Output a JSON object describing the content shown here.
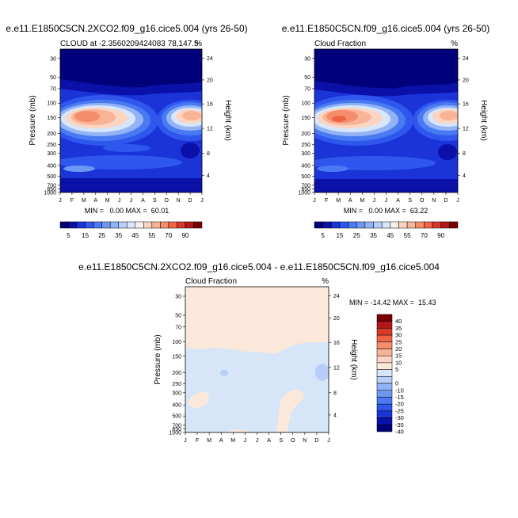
{
  "chart_data": [
    {
      "type": "heatmap",
      "panel": "left",
      "title": "e.e11.E1850C5CN.2XCO2.f09_g16.cice5.004 (yrs 26-50)",
      "subtitle": "CLOUD at -2.3560209424083 78,147.5",
      "subtitle_text": "CLOUD at -2.3560209424083 78,147.5",
      "units": "%",
      "ylabel": "Pressure (mb)",
      "ylabel_right": "Height (km)",
      "x_ticks": [
        "J",
        "F",
        "M",
        "A",
        "M",
        "J",
        "J",
        "A",
        "S",
        "O",
        "N",
        "D",
        "J"
      ],
      "y_ticks": [
        "30",
        "50",
        "70",
        "100",
        "150",
        "200",
        "250",
        "300",
        "400",
        "500",
        "700",
        "850",
        "1000"
      ],
      "y_ticks_right": [
        "24",
        "20",
        "16",
        "12",
        "8",
        "4"
      ],
      "min_max_label": "MIN =   0.00 MAX =  60.01",
      "colorbar_labels": [
        "5",
        "15",
        "25",
        "35",
        "45",
        "55",
        "70",
        "90"
      ],
      "levels": [
        0,
        5,
        10,
        15,
        20,
        25,
        30,
        35,
        40,
        45,
        50,
        55,
        60,
        70,
        80,
        90,
        100
      ]
    },
    {
      "type": "heatmap",
      "panel": "right",
      "title": "e.e11.E1850C5CN.f09_g16.cice5.004 (yrs 26-50)",
      "subtitle_text": "Cloud Fraction",
      "units": "%",
      "ylabel": "Pressure (mb)",
      "ylabel_right": "Height (km)",
      "x_ticks": [
        "J",
        "F",
        "M",
        "A",
        "M",
        "J",
        "J",
        "A",
        "S",
        "O",
        "N",
        "D",
        "J"
      ],
      "y_ticks": [
        "30",
        "50",
        "70",
        "100",
        "150",
        "200",
        "250",
        "300",
        "400",
        "500",
        "700",
        "850",
        "1000"
      ],
      "y_ticks_right": [
        "24",
        "20",
        "16",
        "12",
        "8",
        "4"
      ],
      "min_max_label": "MIN =   0.00 MAX =  63.22",
      "colorbar_labels": [
        "5",
        "15",
        "25",
        "35",
        "45",
        "55",
        "70",
        "90"
      ],
      "levels": [
        0,
        5,
        10,
        15,
        20,
        25,
        30,
        35,
        40,
        45,
        50,
        55,
        60,
        70,
        80,
        90,
        100
      ]
    },
    {
      "type": "heatmap",
      "panel": "difference",
      "title": "e.e11.E1850C5CN.2XCO2.f09_g16.cice5.004 - e.e11.E1850C5CN.f09_g16.cice5.004",
      "subtitle_text": "Cloud Fraction",
      "units": "%",
      "ylabel": "Pressure (mb)",
      "ylabel_right": "Height (km)",
      "x_ticks": [
        "J",
        "F",
        "M",
        "A",
        "M",
        "J",
        "J",
        "A",
        "S",
        "O",
        "N",
        "D",
        "J"
      ],
      "y_ticks": [
        "30",
        "50",
        "70",
        "100",
        "150",
        "200",
        "250",
        "300",
        "400",
        "500",
        "700",
        "850",
        "1000"
      ],
      "y_ticks_right": [
        "24",
        "20",
        "16",
        "12",
        "8",
        "4"
      ],
      "min_max_label": "MIN = -14.42 MAX =  15.43",
      "colorbar_labels": [
        "40",
        "35",
        "30",
        "25",
        "20",
        "15",
        "10",
        "5",
        "0",
        "-10",
        "-15",
        "-20",
        "-25",
        "-30",
        "-35",
        "-40"
      ],
      "levels": [
        -40,
        -35,
        -30,
        -25,
        -20,
        -15,
        -10,
        -5,
        0,
        5,
        10,
        15,
        20,
        25,
        30,
        35,
        40
      ]
    }
  ],
  "colors": {
    "seq": [
      "#00007a",
      "#0a10a8",
      "#1a34d8",
      "#2f57ee",
      "#4a7af2",
      "#6d97f4",
      "#92b4f7",
      "#b6cef9",
      "#d8e6fb",
      "#f6efea",
      "#fbd5c2",
      "#f9b396",
      "#f58c6b",
      "#ee6444",
      "#d8392a",
      "#b01818",
      "#7a0000"
    ],
    "div": [
      "#7a0000",
      "#b01818",
      "#d8392a",
      "#ee6444",
      "#f58c6b",
      "#f9b396",
      "#fbd5c2",
      "#fbe8da",
      "#d6e6f8",
      "#b6cef9",
      "#92b4f7",
      "#6d97f4",
      "#4a7af2",
      "#2f57ee",
      "#1a34d8",
      "#0a10a8",
      "#00007a"
    ]
  }
}
